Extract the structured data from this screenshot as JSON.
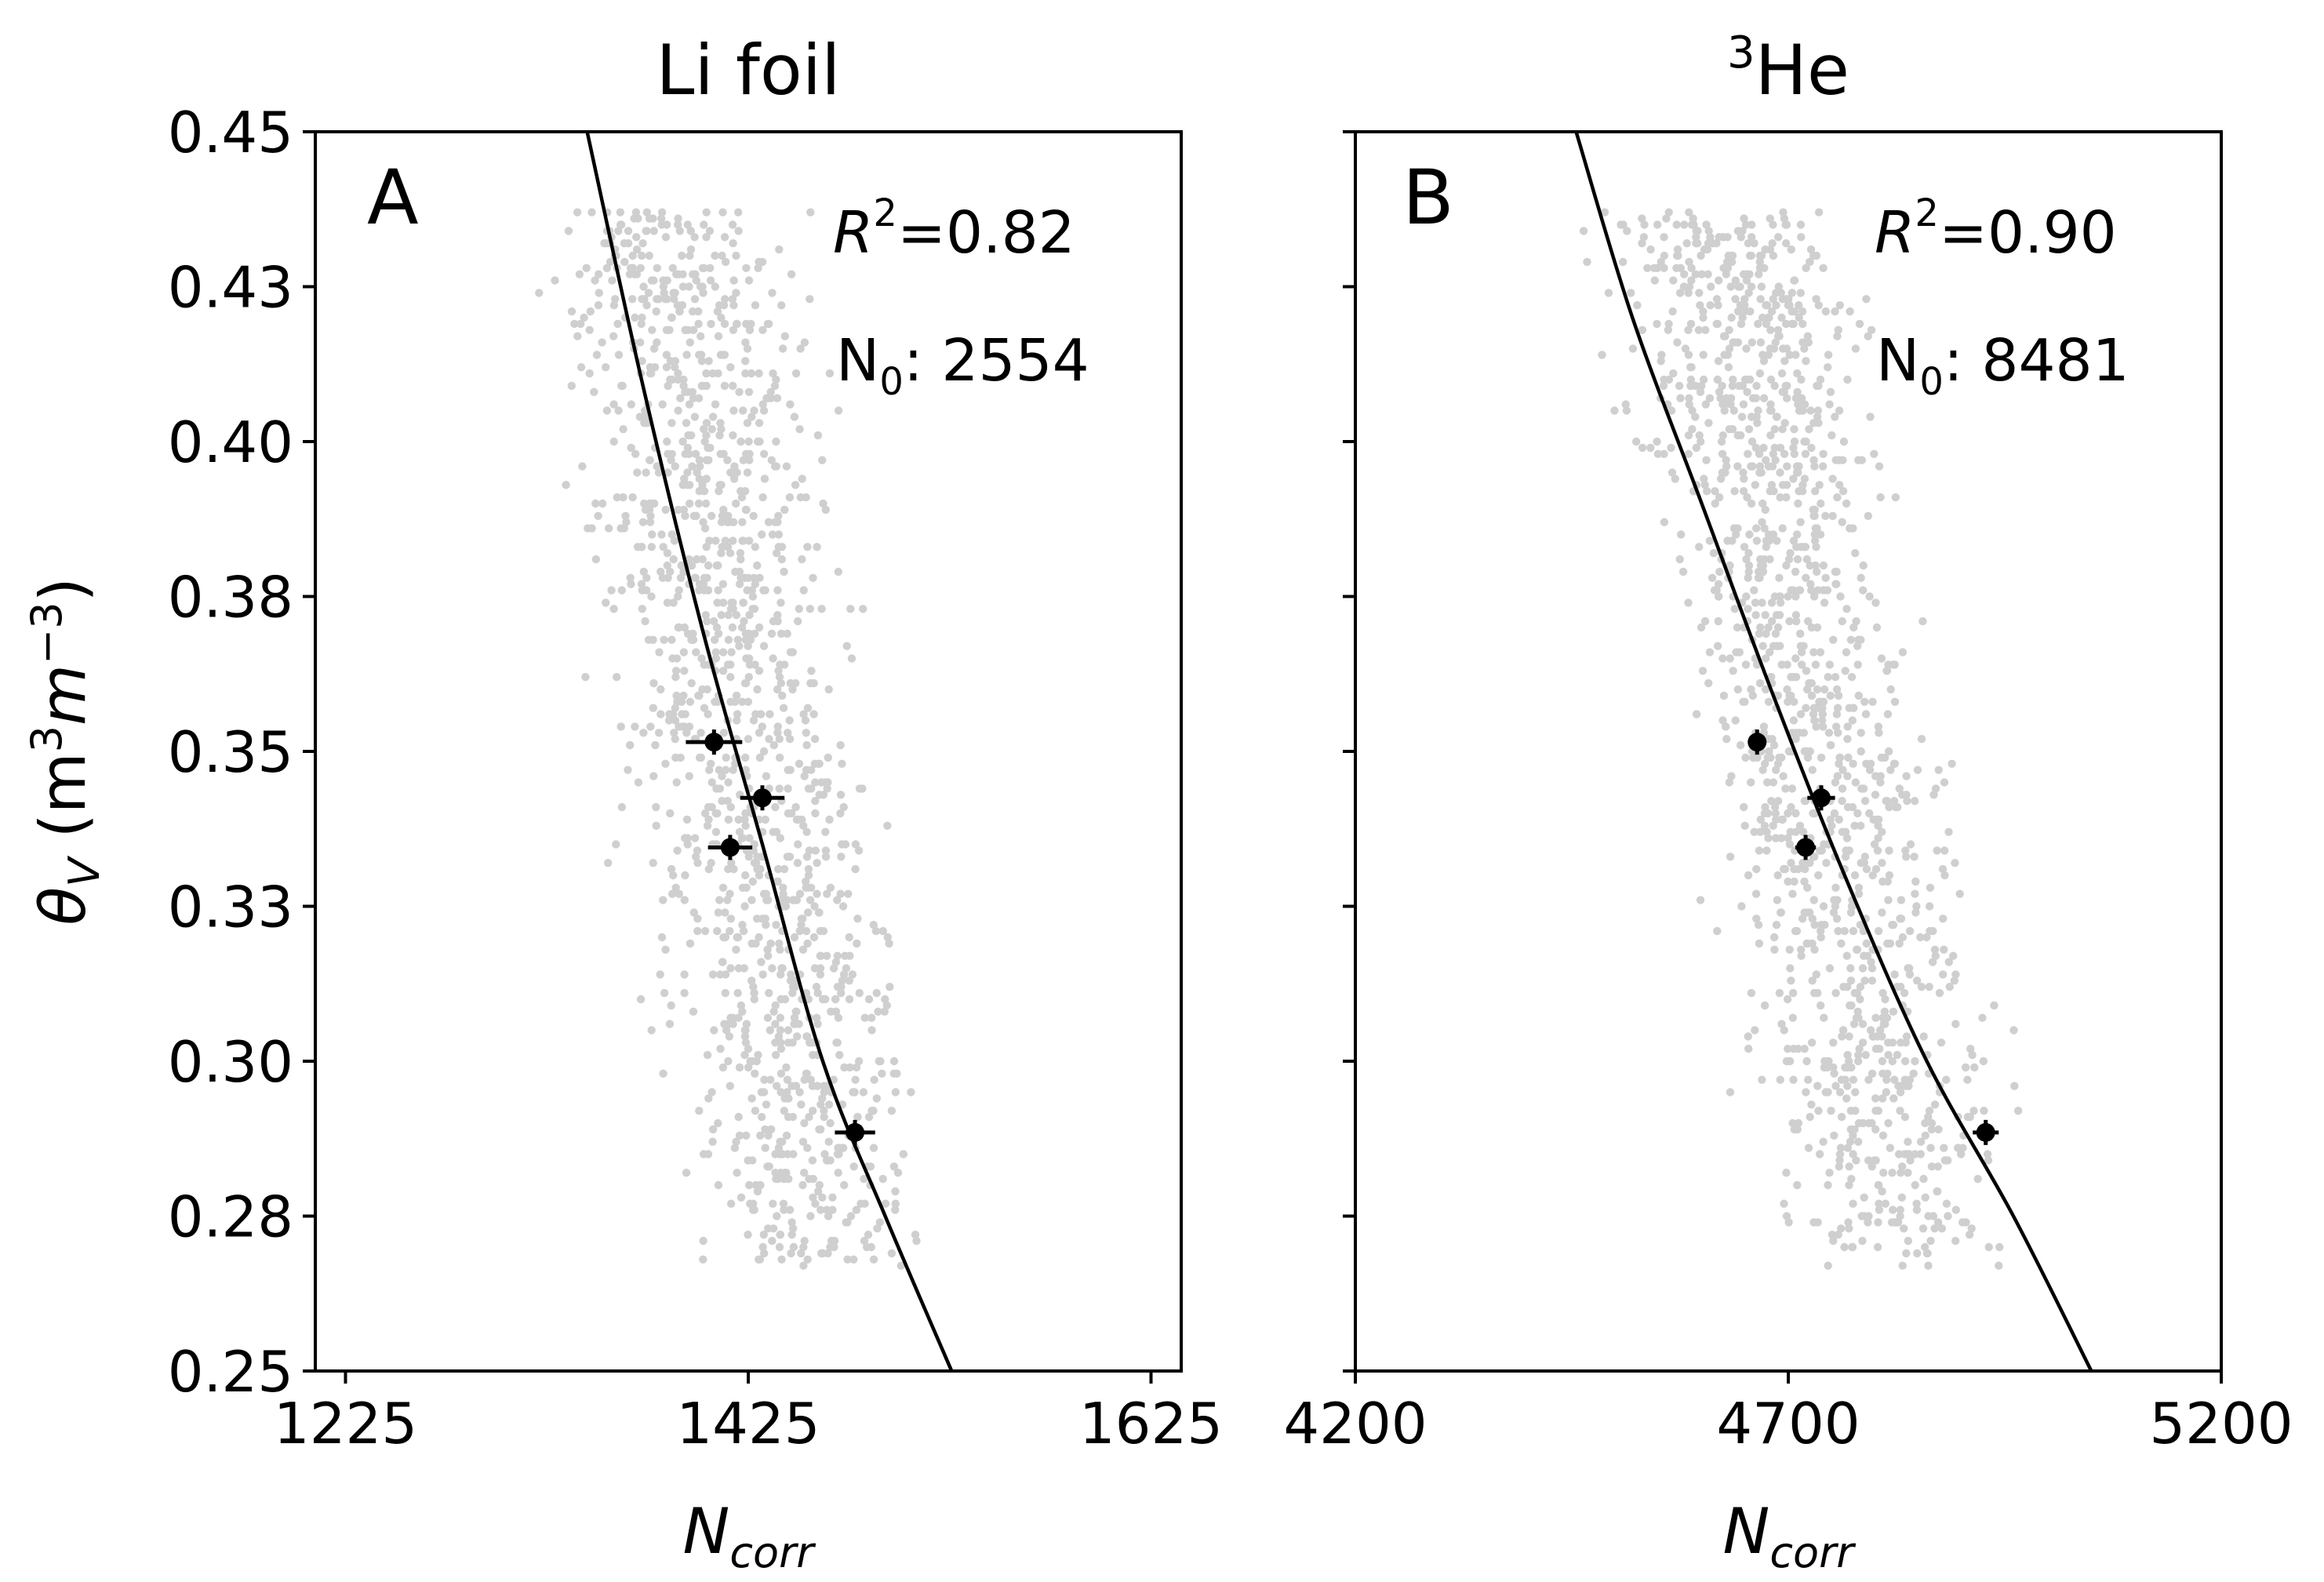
{
  "chart_data": [
    {
      "type": "scatter",
      "panel_label": "A",
      "title": "Li foil",
      "xlabel": "N",
      "xlabel_sub": "corr",
      "ylabel": "θ",
      "ylabel_sub": "V",
      "ylabel_unit_open": " (m",
      "ylabel_unit_m_exp": "3",
      "ylabel_unit_m2": "m",
      "ylabel_unit_exp2": "−3",
      "ylabel_unit_close": ")",
      "xlim": [
        1210,
        1640
      ],
      "ylim": [
        0.25,
        0.45
      ],
      "xticks": [
        1225,
        1425,
        1625
      ],
      "xtick_labels": [
        "1225",
        "1425",
        "1625"
      ],
      "yticks": [
        0.25,
        0.275,
        0.3,
        0.325,
        0.35,
        0.375,
        0.4,
        0.425,
        0.45
      ],
      "ytick_labels": [
        "0.25",
        "0.28",
        "0.30",
        "0.33",
        "0.35",
        "0.38",
        "0.40",
        "0.43",
        "0.45"
      ],
      "annotation_r2_symbol": "R",
      "annotation_r2_exp": "2",
      "annotation_r2_value": "=0.82",
      "annotation_n0_label": "N",
      "annotation_n0_sub": "0",
      "annotation_n0_value": ": 2554",
      "fit_curve": {
        "x": [
          1345,
          1372,
          1402,
          1432,
          1462,
          1493,
          1526
        ],
        "y": [
          0.45,
          0.41,
          0.37,
          0.335,
          0.3,
          0.275,
          0.25
        ]
      },
      "mean_points": [
        {
          "x": 1408,
          "y": 0.3515,
          "xerr": 14
        },
        {
          "x": 1432,
          "y": 0.3425,
          "xerr": 11
        },
        {
          "x": 1416,
          "y": 0.3345,
          "xerr": 11
        },
        {
          "x": 1478,
          "y": 0.2885,
          "xerr": 10
        }
      ],
      "scatter_color": "#cfcfcf",
      "scatter_cloud": {
        "x_center": [
          1385,
          1460
        ],
        "x_spread": 75,
        "y_range": [
          0.2665,
          0.437
        ],
        "count": 1400
      }
    },
    {
      "type": "scatter",
      "panel_label": "B",
      "title_sup": "3",
      "title": "He",
      "xlabel": "N",
      "xlabel_sub": "corr",
      "xlim": [
        4200,
        5200
      ],
      "ylim": [
        0.25,
        0.45
      ],
      "xticks": [
        4200,
        4700,
        5200
      ],
      "xtick_labels": [
        "4200",
        "4700",
        "5200"
      ],
      "yticks": [
        0.25,
        0.275,
        0.3,
        0.325,
        0.35,
        0.375,
        0.4,
        0.425,
        0.45
      ],
      "annotation_r2_symbol": "R",
      "annotation_r2_exp": "2",
      "annotation_r2_value": "=0.90",
      "annotation_n0_label": "N",
      "annotation_n0_sub": "0",
      "annotation_n0_value": ": 8481",
      "fit_curve": {
        "x": [
          4455,
          4520,
          4600,
          4680,
          4765,
          4860,
          4960,
          5050
        ],
        "y": [
          0.45,
          0.42,
          0.39,
          0.36,
          0.33,
          0.3,
          0.275,
          0.25
        ]
      },
      "mean_points": [
        {
          "x": 4664,
          "y": 0.3515,
          "xerr": 0
        },
        {
          "x": 4738,
          "y": 0.3425,
          "xerr": 16
        },
        {
          "x": 4720,
          "y": 0.3345,
          "xerr": 12
        },
        {
          "x": 4928,
          "y": 0.2885,
          "xerr": 15
        }
      ],
      "scatter_color": "#cfcfcf",
      "scatter_cloud": {
        "x_center": [
          4620,
          4840
        ],
        "x_spread": 170,
        "y_range": [
          0.2665,
          0.437
        ],
        "count": 1400
      }
    }
  ]
}
